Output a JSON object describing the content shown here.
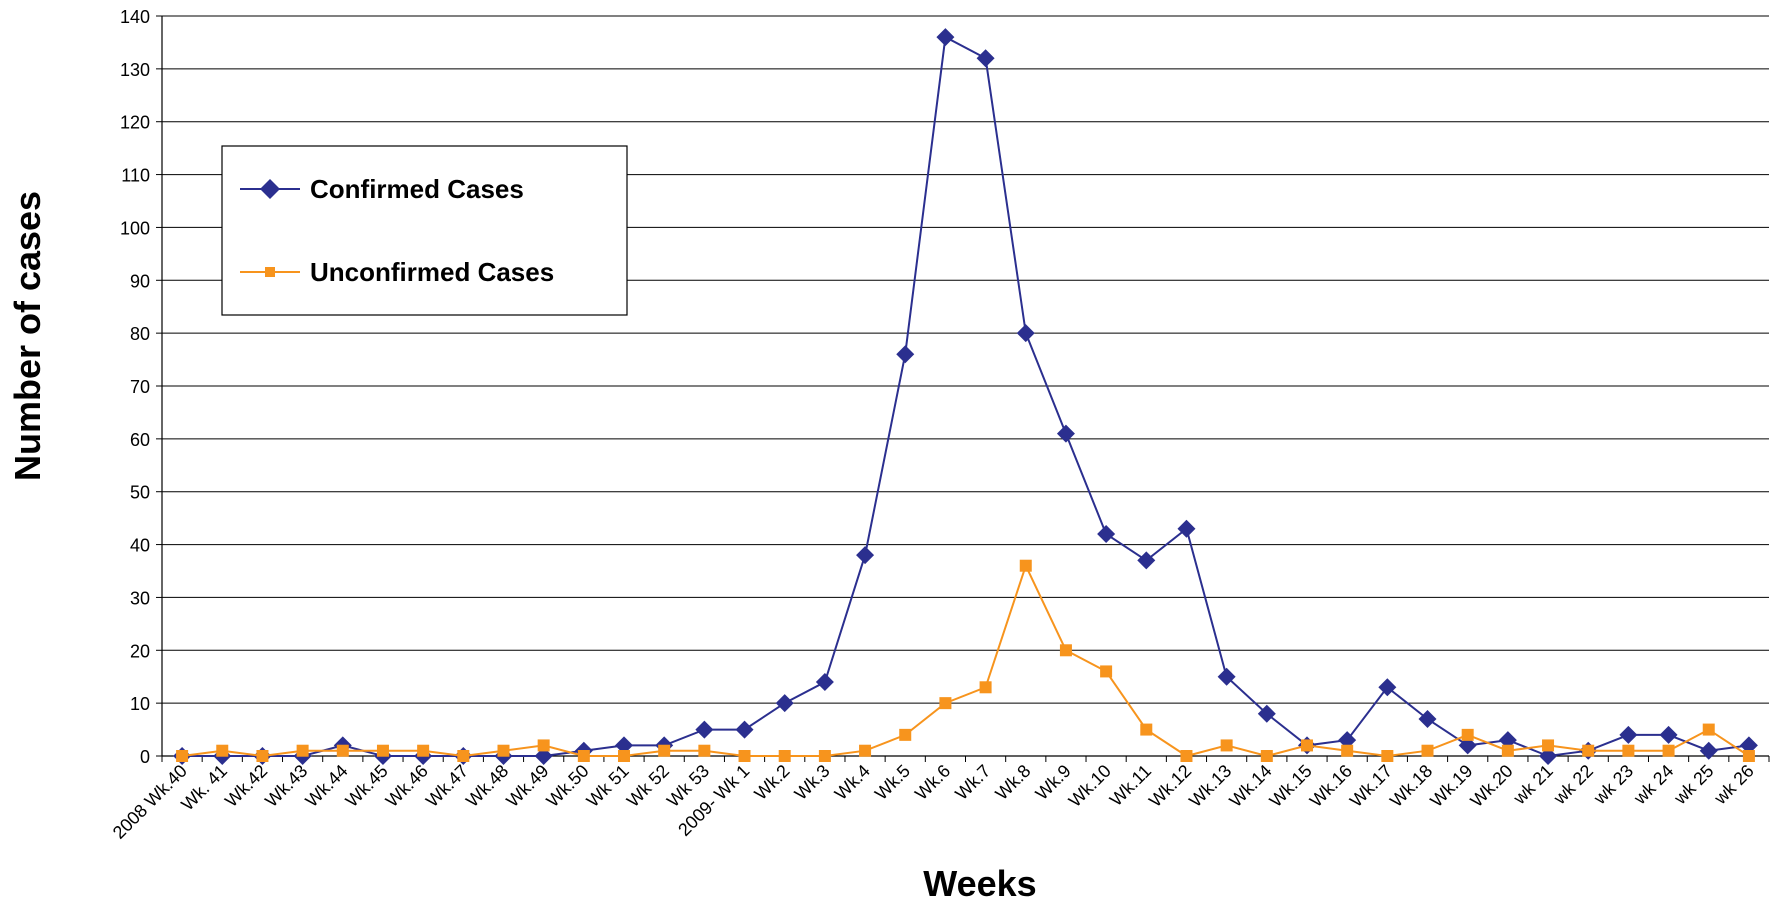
{
  "chart_data": {
    "type": "line",
    "title": "",
    "xlabel": "Weeks",
    "ylabel": "Number of cases",
    "ylim": [
      0,
      140
    ],
    "ytick_step": 10,
    "grid": "horizontal",
    "legend_position": "top-left",
    "categories": [
      "2008 Wk.40",
      "Wk. 41",
      "Wk.42",
      "Wk.43",
      "Wk.44",
      "Wk.45",
      "Wk.46",
      "Wk.47",
      "Wk.48",
      "Wk.49",
      "Wk.50",
      "Wk 51",
      "Wk 52",
      "Wk 53",
      "2009- Wk 1",
      "Wk.2",
      "Wk.3",
      "Wk.4",
      "Wk.5",
      "Wk.6",
      "Wk.7",
      "Wk.8",
      "Wk.9",
      "Wk.10",
      "Wk.11",
      "Wk.12",
      "Wk.13",
      "Wk.14",
      "Wk.15",
      "Wk.16",
      "Wk.17",
      "Wk.18",
      "Wk.19",
      "Wk.20",
      "wk 21",
      "wk 22",
      "wk 23",
      "wk 24",
      "wk 25",
      "wk 26"
    ],
    "series": [
      {
        "name": "Confirmed Cases",
        "color": "#2b2f8f",
        "marker": "diamond",
        "values": [
          0,
          0,
          0,
          0,
          2,
          0,
          0,
          0,
          0,
          0,
          1,
          2,
          2,
          5,
          5,
          10,
          14,
          38,
          76,
          136,
          132,
          80,
          61,
          42,
          37,
          43,
          15,
          8,
          2,
          3,
          13,
          7,
          2,
          3,
          0,
          1,
          4,
          4,
          1,
          2
        ]
      },
      {
        "name": "Unconfirmed Cases",
        "color": "#f7941d",
        "marker": "square",
        "values": [
          0,
          1,
          0,
          1,
          1,
          1,
          1,
          0,
          1,
          2,
          0,
          0,
          1,
          1,
          0,
          0,
          0,
          1,
          4,
          10,
          13,
          36,
          20,
          16,
          5,
          0,
          2,
          0,
          2,
          1,
          0,
          1,
          4,
          1,
          2,
          1,
          1,
          1,
          5,
          0
        ]
      }
    ]
  }
}
